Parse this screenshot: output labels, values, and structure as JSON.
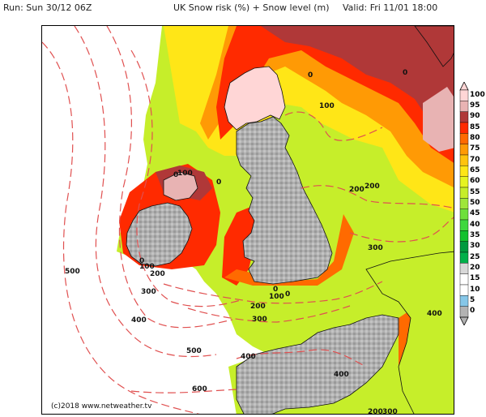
{
  "header": {
    "run": "Run: Sun 30/12 06Z",
    "title": "UK Snow risk (%) + Snow level (m)",
    "valid": "Valid: Fri 11/01 18:00"
  },
  "map": {
    "credit": "(c)2018 www.netweather.tv",
    "contour_labels": [
      "0",
      "0",
      "0",
      "0",
      "0",
      "0",
      "0",
      "100",
      "100",
      "100",
      "100",
      "200",
      "200",
      "200",
      "200",
      "200",
      "300",
      "300",
      "300",
      "300",
      "400",
      "400",
      "400",
      "400",
      "500",
      "500",
      "600"
    ]
  },
  "legend": {
    "colors": {
      "0": "#b3b3b3",
      "5": "#86c7e8",
      "10": "#ffffff",
      "15": "#ffffff",
      "20": "#d8d8d8",
      "25": "#00b04a",
      "30": "#009a3e",
      "35": "#12c12e",
      "40": "#3ed83e",
      "45": "#6ee03a",
      "50": "#9fe63a",
      "55": "#c6ee2a",
      "60": "#e6f421",
      "65": "#ffe617",
      "70": "#ffc30e",
      "75": "#ff9a05",
      "80": "#ff6a00",
      "85": "#ff2a00",
      "90": "#b03838",
      "95": "#e8b3b3",
      "100": "#ffd6d6"
    },
    "labels": [
      "100",
      "95",
      "90",
      "85",
      "80",
      "75",
      "70",
      "65",
      "60",
      "55",
      "50",
      "45",
      "40",
      "35",
      "30",
      "25",
      "20",
      "15",
      "10",
      "5",
      "0"
    ]
  }
}
